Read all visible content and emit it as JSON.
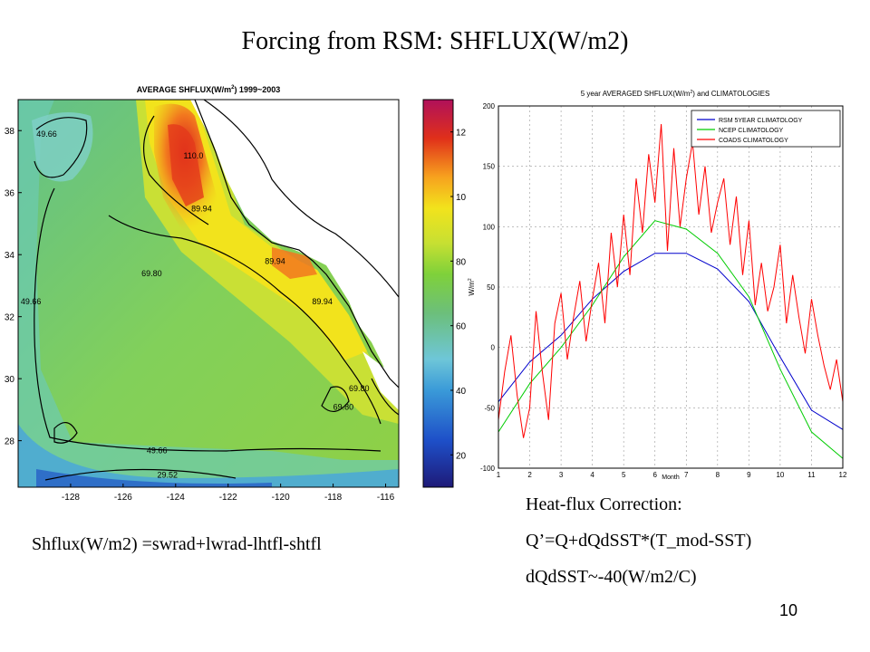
{
  "slide": {
    "title": "Forcing from RSM: SHFLUX(W/m2)",
    "page_number": "10",
    "formula": "Shflux(W/m2) =swrad+lwrad-lhtfl-shtfl",
    "correction_title": "Heat-flux Correction:",
    "correction_eq": "Q’=Q+dQdSST*(T_mod-SST)",
    "correction_coef": "dQdSST~-40(W/m2/C)"
  },
  "chart_data": [
    {
      "type": "heatmap",
      "title": "AVERAGE SHFLUX(W/m²) 1999~2003",
      "title_prefix": "AVERAGE SHFLUX(W/m",
      "title_sup": "2",
      "title_suffix": ") 1999~2003",
      "x_ticks": [
        "-128",
        "-126",
        "-124",
        "-122",
        "-120",
        "-118",
        "-116"
      ],
      "y_ticks": [
        "38",
        "36",
        "34",
        "32",
        "30",
        "28"
      ],
      "xlim": [
        -130,
        -115.5
      ],
      "ylim": [
        26.5,
        39
      ],
      "colorbar_ticks": [
        "12",
        "10",
        "80",
        "60",
        "40",
        "20"
      ],
      "colorbar_range": [
        10,
        130
      ],
      "contour_labels": [
        {
          "text": "49.66",
          "lon": -129.3,
          "lat": 37.8
        },
        {
          "text": "110.0",
          "lon": -123.7,
          "lat": 37.1
        },
        {
          "text": "89.94",
          "lon": -123.4,
          "lat": 35.4
        },
        {
          "text": "89.94",
          "lon": -120.6,
          "lat": 33.7
        },
        {
          "text": "69.80",
          "lon": -125.3,
          "lat": 33.3
        },
        {
          "text": "49.66",
          "lon": -129.9,
          "lat": 32.4
        },
        {
          "text": "89.94",
          "lon": -118.8,
          "lat": 32.4
        },
        {
          "text": "69.80",
          "lon": -117.4,
          "lat": 29.6
        },
        {
          "text": "69.80",
          "lon": -118.0,
          "lat": 29.0
        },
        {
          "text": "49.66",
          "lon": -125.1,
          "lat": 27.6
        },
        {
          "text": "29.52",
          "lon": -124.7,
          "lat": 26.8
        }
      ]
    },
    {
      "type": "line",
      "title": "5 year AVERAGED SHFLUX(W/m²) and CLIMATOLOGIES",
      "title_prefix": "5 year AVERAGED SHFLUX(W/m",
      "title_sup": "2",
      "title_suffix": ") and CLIMATOLOGIES",
      "xlabel": "Month",
      "ylabel": "W/m²",
      "ylabel_text": "W/m",
      "ylabel_sup": "2",
      "xlim": [
        1,
        12
      ],
      "ylim": [
        -100,
        200
      ],
      "x_ticks": [
        "1",
        "2",
        "3",
        "4",
        "5",
        "6",
        "7",
        "8",
        "9",
        "10",
        "11",
        "12"
      ],
      "y_ticks": [
        "200",
        "150",
        "100",
        "50",
        "0",
        "-50",
        "-100"
      ],
      "grid": true,
      "legend_position": "top-right",
      "series": [
        {
          "name": "RSM 5YEAR CLIMATOLOGY",
          "color": "#0000cc",
          "x": [
            1,
            2,
            3,
            4,
            5,
            6,
            7,
            8,
            9,
            10,
            11,
            12
          ],
          "y": [
            -45,
            -12,
            10,
            40,
            63,
            78,
            78,
            65,
            38,
            -8,
            -52,
            -68
          ]
        },
        {
          "name": "NCEP CLIMATOLOGY",
          "color": "#00cc00",
          "x": [
            1,
            2,
            3,
            4,
            5,
            6,
            7,
            8,
            9,
            10,
            11,
            12
          ],
          "y": [
            -70,
            -30,
            0,
            35,
            75,
            105,
            98,
            78,
            42,
            -18,
            -70,
            -92
          ]
        },
        {
          "name": "COADS CLIMATOLOGY",
          "color": "#ff0000",
          "x": [
            1.0,
            1.2,
            1.4,
            1.6,
            1.8,
            2.0,
            2.2,
            2.4,
            2.6,
            2.8,
            3.0,
            3.2,
            3.4,
            3.6,
            3.8,
            4.0,
            4.2,
            4.4,
            4.6,
            4.8,
            5.0,
            5.2,
            5.4,
            5.6,
            5.8,
            6.0,
            6.2,
            6.4,
            6.6,
            6.8,
            7.0,
            7.2,
            7.4,
            7.6,
            7.8,
            8.0,
            8.2,
            8.4,
            8.6,
            8.8,
            9.0,
            9.2,
            9.4,
            9.6,
            9.8,
            10.0,
            10.2,
            10.4,
            10.6,
            10.8,
            11.0,
            11.2,
            11.4,
            11.6,
            11.8,
            12.0
          ],
          "y": [
            -60,
            -20,
            10,
            -40,
            -75,
            -50,
            30,
            -20,
            -60,
            20,
            45,
            -10,
            25,
            55,
            5,
            40,
            70,
            20,
            95,
            50,
            110,
            60,
            140,
            95,
            160,
            120,
            185,
            80,
            165,
            100,
            140,
            170,
            110,
            150,
            95,
            120,
            140,
            85,
            125,
            60,
            105,
            35,
            70,
            30,
            50,
            85,
            20,
            60,
            25,
            -5,
            40,
            10,
            -15,
            -35,
            -10,
            -45
          ]
        }
      ]
    }
  ]
}
